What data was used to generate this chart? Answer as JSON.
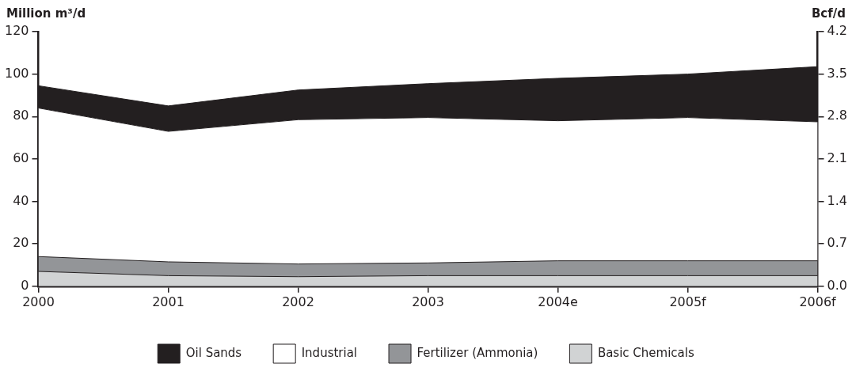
{
  "chart_data": {
    "type": "area",
    "stacked": true,
    "ylabel": "Million m³/d",
    "y2label": "Bcf/d",
    "categories": [
      "2000",
      "2001",
      "2002",
      "2003",
      "2004e",
      "2005f",
      "2006f"
    ],
    "series": [
      {
        "name": "Basic Chemicals",
        "color": "#d1d3d4",
        "values": [
          7,
          5,
          4.5,
          5,
          5,
          5,
          5
        ]
      },
      {
        "name": "Fertilizer (Ammonia)",
        "color": "#939598",
        "values": [
          7,
          6.5,
          6,
          6,
          7,
          7,
          7
        ]
      },
      {
        "name": "Industrial",
        "color": "#ffffff",
        "values": [
          70,
          61.5,
          68,
          68.5,
          66,
          67.5,
          65.5
        ]
      },
      {
        "name": "Oil Sands",
        "color": "#231f20",
        "values": [
          10.5,
          12,
          14,
          16,
          20,
          20.5,
          26
        ]
      }
    ],
    "ylim": [
      0,
      120
    ],
    "yticks": [
      0,
      20,
      40,
      60,
      80,
      100,
      120
    ],
    "y2lim": [
      0,
      4.2
    ],
    "y2ticks": [
      {
        "value": 0,
        "label": "0.0"
      },
      {
        "value": 0.7,
        "label": "0.7"
      },
      {
        "value": 1.4,
        "label": "1.4"
      },
      {
        "value": 2.1,
        "label": "2.1"
      },
      {
        "value": 2.8,
        "label": "2.8"
      },
      {
        "value": 3.5,
        "label": "3.5"
      },
      {
        "value": 4.2,
        "label": "4.2"
      }
    ],
    "grid": false,
    "legend": "bottom"
  }
}
